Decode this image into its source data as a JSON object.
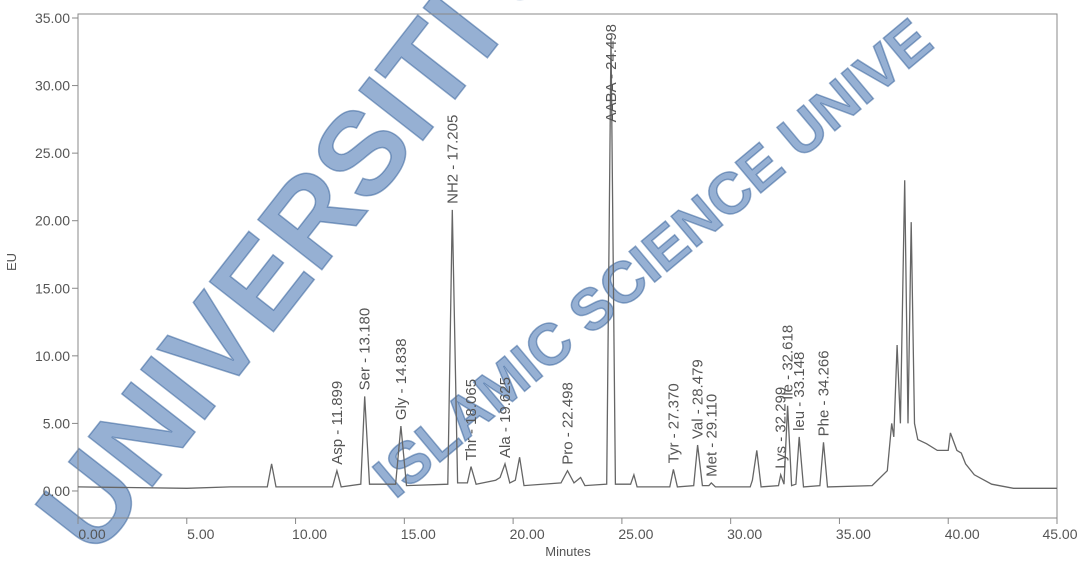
{
  "chart_data": {
    "type": "line",
    "xlabel": "Minutes",
    "ylabel": "EU",
    "watermark": [
      "UNIVERSITI SAI",
      "ISLAMIC SCIENCE UNIVE"
    ],
    "x": [
      0,
      5,
      7,
      8.7,
      8.9,
      9.1,
      11.7,
      11.9,
      12.1,
      13.0,
      13.18,
      13.4,
      14.6,
      14.84,
      15.1,
      17.0,
      17.205,
      17.45,
      17.9,
      18.065,
      18.3,
      19.2,
      19.4,
      19.625,
      19.85,
      20.1,
      20.3,
      20.5,
      22.2,
      22.498,
      22.8,
      23.1,
      23.3,
      24.3,
      24.498,
      24.7,
      25.4,
      25.55,
      25.7,
      27.2,
      27.37,
      27.55,
      28.3,
      28.479,
      28.7,
      29.0,
      29.11,
      29.3,
      30.9,
      31.0,
      31.2,
      31.4,
      32.2,
      32.299,
      32.45,
      32.618,
      32.8,
      33.0,
      33.148,
      33.35,
      34.1,
      34.266,
      34.45,
      36.5,
      37.2,
      37.4,
      37.5,
      37.65,
      37.8,
      38.0,
      38.15,
      38.3,
      38.45,
      38.6,
      39.0,
      39.5,
      40.0,
      40.1,
      40.4,
      40.6,
      40.8,
      41.2,
      42,
      43,
      45
    ],
    "values": [
      0.3,
      0.2,
      0.3,
      0.3,
      2.0,
      0.3,
      0.3,
      1.5,
      0.3,
      0.5,
      7.0,
      0.5,
      0.5,
      4.8,
      0.4,
      0.5,
      20.8,
      0.6,
      0.6,
      1.8,
      0.5,
      0.8,
      1.0,
      2.0,
      0.6,
      0.8,
      2.5,
      0.4,
      0.6,
      1.5,
      0.6,
      1.0,
      0.4,
      0.5,
      33.5,
      0.5,
      0.5,
      1.2,
      0.3,
      0.3,
      1.6,
      0.3,
      0.4,
      3.4,
      0.4,
      0.4,
      0.6,
      0.3,
      0.3,
      0.8,
      3.0,
      0.3,
      0.4,
      1.2,
      0.5,
      6.3,
      0.4,
      0.5,
      4.0,
      0.3,
      0.4,
      3.6,
      0.3,
      0.4,
      1.5,
      5.0,
      4.0,
      10.8,
      5,
      23.0,
      5,
      19.9,
      5,
      3.8,
      3.5,
      3.0,
      3.0,
      4.3,
      3.0,
      2.8,
      2.0,
      1.2,
      0.5,
      0.2,
      0.2
    ],
    "color": "#666666",
    "annotations": [
      {
        "text": "Asp - 11.899",
        "x": 11.899
      },
      {
        "text": "Ser - 13.180",
        "x": 13.18
      },
      {
        "text": "Gly - 14.838",
        "x": 14.838
      },
      {
        "text": "NH2 - 17.205",
        "x": 17.205
      },
      {
        "text": "Thr - 18.065",
        "x": 18.065
      },
      {
        "text": "Ala - 19.625",
        "x": 19.625
      },
      {
        "text": "Pro - 22.498",
        "x": 22.498
      },
      {
        "text": "AABA - 24.498",
        "x": 24.498
      },
      {
        "text": "Tyr - 27.370",
        "x": 27.37
      },
      {
        "text": "Val - 28.479",
        "x": 28.479
      },
      {
        "text": "Met - 29.110",
        "x": 29.11
      },
      {
        "text": "Lys - 32.299",
        "x": 32.299
      },
      {
        "text": "Ile - 32.618",
        "x": 32.618
      },
      {
        "text": "leu - 33.148",
        "x": 33.148
      },
      {
        "text": "Phe - 34.266",
        "x": 34.266
      }
    ],
    "xlim": [
      0,
      45
    ],
    "xticks": [
      {
        "value": 0,
        "label": "0.00"
      },
      {
        "value": 5,
        "label": "5.00"
      },
      {
        "value": 10,
        "label": "10.00"
      },
      {
        "value": 15,
        "label": "15.00"
      },
      {
        "value": 20,
        "label": "20.00"
      },
      {
        "value": 25,
        "label": "25.00"
      },
      {
        "value": 30,
        "label": "30.00"
      },
      {
        "value": 35,
        "label": "35.00"
      },
      {
        "value": 40,
        "label": "40.00"
      },
      {
        "value": 45,
        "label": "45.00"
      }
    ],
    "ylim": [
      -2,
      35
    ],
    "yticks": [
      {
        "value": 0,
        "label": "0.00"
      },
      {
        "value": 5,
        "label": "5.00"
      },
      {
        "value": 10,
        "label": "10.00"
      },
      {
        "value": 15,
        "label": "15.00"
      },
      {
        "value": 20,
        "label": "20.00"
      },
      {
        "value": 25,
        "label": "25.00"
      },
      {
        "value": 30,
        "label": "30.00"
      },
      {
        "value": 35,
        "label": "35.00"
      }
    ],
    "grid": false
  }
}
